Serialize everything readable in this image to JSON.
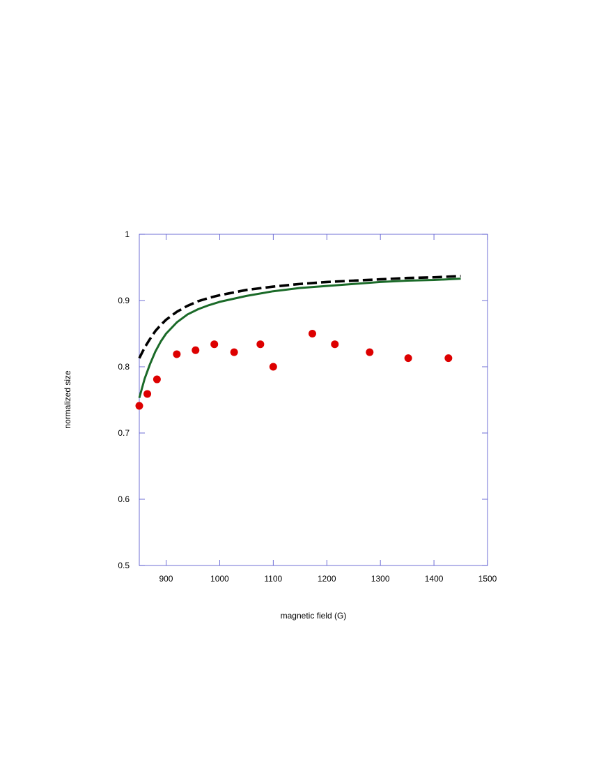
{
  "chart_data": {
    "type": "scatter",
    "title": "",
    "xlabel": "magnetic field (G)",
    "ylabel": "normalized size",
    "xlim": [
      850,
      1500
    ],
    "ylim": [
      0.5,
      1.0
    ],
    "xticks": [
      900,
      1000,
      1100,
      1200,
      1300,
      1400,
      1500
    ],
    "xtick_labels": [
      "900",
      "1000",
      "1100",
      "1200",
      "1300",
      "1400",
      "1500"
    ],
    "yticks": [
      0.5,
      0.6,
      0.7,
      0.8,
      0.9,
      1.0
    ],
    "ytick_labels": [
      "0.5",
      "0.6",
      "0.7",
      "0.8",
      "0.9",
      "1"
    ],
    "grid": false,
    "series": [
      {
        "kind": "scatter",
        "color": "#dd0000",
        "x": [
          850,
          865,
          883,
          920,
          955,
          990,
          1027,
          1076,
          1100,
          1173,
          1215,
          1280,
          1352,
          1427
        ],
        "y": [
          0.741,
          0.759,
          0.781,
          0.819,
          0.825,
          0.834,
          0.822,
          0.834,
          0.8,
          0.85,
          0.834,
          0.822,
          0.813,
          0.813
        ]
      },
      {
        "kind": "line",
        "style": "dashed",
        "color": "#000000",
        "x": [
          850,
          860,
          870,
          880,
          890,
          900,
          920,
          940,
          960,
          980,
          1000,
          1050,
          1100,
          1150,
          1200,
          1250,
          1300,
          1350,
          1400,
          1450
        ],
        "y": [
          0.813,
          0.829,
          0.842,
          0.854,
          0.863,
          0.871,
          0.883,
          0.892,
          0.899,
          0.904,
          0.908,
          0.916,
          0.921,
          0.925,
          0.928,
          0.93,
          0.932,
          0.934,
          0.935,
          0.937
        ]
      },
      {
        "kind": "line",
        "style": "solid",
        "color": "#1a6a28",
        "x": [
          850,
          860,
          870,
          880,
          890,
          900,
          920,
          940,
          960,
          980,
          1000,
          1050,
          1100,
          1150,
          1200,
          1250,
          1300,
          1350,
          1400,
          1450
        ],
        "y": [
          0.753,
          0.782,
          0.804,
          0.823,
          0.838,
          0.85,
          0.867,
          0.879,
          0.887,
          0.893,
          0.898,
          0.907,
          0.914,
          0.919,
          0.922,
          0.925,
          0.928,
          0.93,
          0.931,
          0.933
        ]
      }
    ]
  }
}
